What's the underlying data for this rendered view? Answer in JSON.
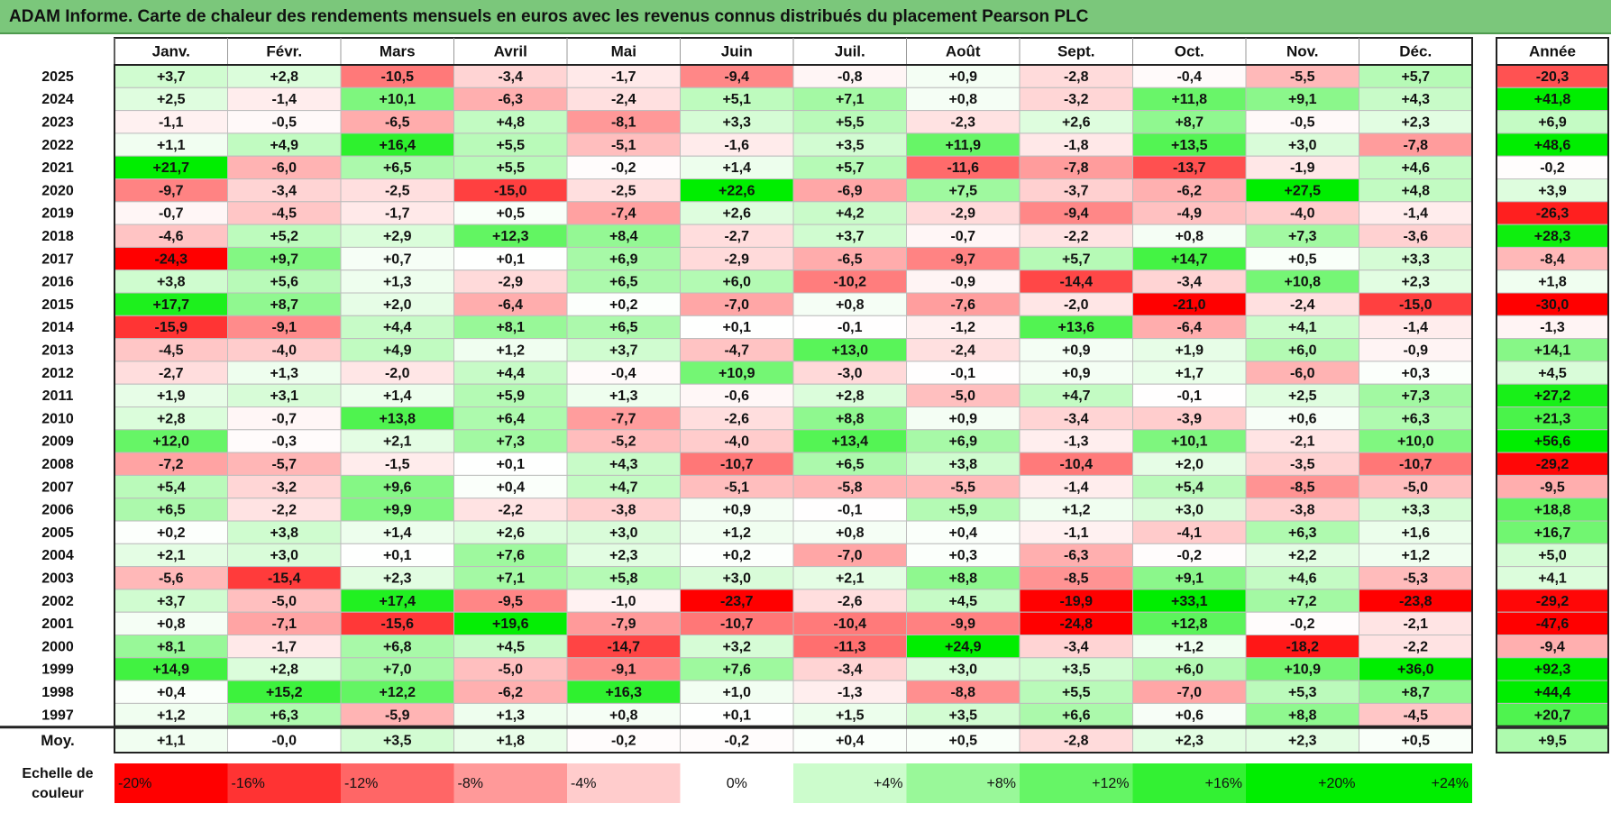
{
  "title": "ADAM Informe. Carte de chaleur des rendements mensuels en euros avec les revenus connus distribués du placement Pearson PLC",
  "chart_data": {
    "type": "heatmap",
    "title": "ADAM Informe. Carte de chaleur des rendements mensuels en euros avec les revenus connus distribués du placement Pearson PLC",
    "columns": [
      "Janv.",
      "Févr.",
      "Mars",
      "Avril",
      "Mai",
      "Juin",
      "Juil.",
      "Août",
      "Sept.",
      "Oct.",
      "Nov.",
      "Déc."
    ],
    "year_header": "Année",
    "rows": [
      {
        "year": "2025",
        "values": [
          "+3,7",
          "+2,8",
          "-10,5",
          "-3,4",
          "-1,7",
          "-9,4",
          "-0,8",
          "+0,9",
          "-2,8",
          "-0,4",
          "-5,5",
          "+5,7"
        ],
        "annual": "-20,3"
      },
      {
        "year": "2024",
        "values": [
          "+2,5",
          "-1,4",
          "+10,1",
          "-6,3",
          "-2,4",
          "+5,1",
          "+7,1",
          "+0,8",
          "-3,2",
          "+11,8",
          "+9,1",
          "+4,3"
        ],
        "annual": "+41,8"
      },
      {
        "year": "2023",
        "values": [
          "-1,1",
          "-0,5",
          "-6,5",
          "+4,8",
          "-8,1",
          "+3,3",
          "+5,5",
          "-2,3",
          "+2,6",
          "+8,7",
          "-0,5",
          "+2,3"
        ],
        "annual": "+6,9"
      },
      {
        "year": "2022",
        "values": [
          "+1,1",
          "+4,9",
          "+16,4",
          "+5,5",
          "-5,1",
          "-1,6",
          "+3,5",
          "+11,9",
          "-1,8",
          "+13,5",
          "+3,0",
          "-7,8"
        ],
        "annual": "+48,6"
      },
      {
        "year": "2021",
        "values": [
          "+21,7",
          "-6,0",
          "+6,5",
          "+5,5",
          "-0,2",
          "+1,4",
          "+5,7",
          "-11,6",
          "-7,8",
          "-13,7",
          "-1,9",
          "+4,6"
        ],
        "annual": "-0,2"
      },
      {
        "year": "2020",
        "values": [
          "-9,7",
          "-3,4",
          "-2,5",
          "-15,0",
          "-2,5",
          "+22,6",
          "-6,9",
          "+7,5",
          "-3,7",
          "-6,2",
          "+27,5",
          "+4,8"
        ],
        "annual": "+3,9"
      },
      {
        "year": "2019",
        "values": [
          "-0,7",
          "-4,5",
          "-1,7",
          "+0,5",
          "-7,4",
          "+2,6",
          "+4,2",
          "-2,9",
          "-9,4",
          "-4,9",
          "-4,0",
          "-1,4"
        ],
        "annual": "-26,3"
      },
      {
        "year": "2018",
        "values": [
          "-4,6",
          "+5,2",
          "+2,9",
          "+12,3",
          "+8,4",
          "-2,7",
          "+3,7",
          "-0,7",
          "-2,2",
          "+0,8",
          "+7,3",
          "-3,6"
        ],
        "annual": "+28,3"
      },
      {
        "year": "2017",
        "values": [
          "-24,3",
          "+9,7",
          "+0,7",
          "+0,1",
          "+6,9",
          "-2,9",
          "-6,5",
          "-9,7",
          "+5,7",
          "+14,7",
          "+0,5",
          "+3,3"
        ],
        "annual": "-8,4"
      },
      {
        "year": "2016",
        "values": [
          "+3,8",
          "+5,6",
          "+1,3",
          "-2,9",
          "+6,5",
          "+6,0",
          "-10,2",
          "-0,9",
          "-14,4",
          "-3,4",
          "+10,8",
          "+2,3"
        ],
        "annual": "+1,8"
      },
      {
        "year": "2015",
        "values": [
          "+17,7",
          "+8,7",
          "+2,0",
          "-6,4",
          "+0,2",
          "-7,0",
          "+0,8",
          "-7,6",
          "-2,0",
          "-21,0",
          "-2,4",
          "-15,0"
        ],
        "annual": "-30,0"
      },
      {
        "year": "2014",
        "values": [
          "-15,9",
          "-9,1",
          "+4,4",
          "+8,1",
          "+6,5",
          "+0,1",
          "-0,1",
          "-1,2",
          "+13,6",
          "-6,4",
          "+4,1",
          "-1,4"
        ],
        "annual": "-1,3"
      },
      {
        "year": "2013",
        "values": [
          "-4,5",
          "-4,0",
          "+4,9",
          "+1,2",
          "+3,7",
          "-4,7",
          "+13,0",
          "-2,4",
          "+0,9",
          "+1,9",
          "+6,0",
          "-0,9"
        ],
        "annual": "+14,1"
      },
      {
        "year": "2012",
        "values": [
          "-2,7",
          "+1,3",
          "-2,0",
          "+4,4",
          "-0,4",
          "+10,9",
          "-3,0",
          "-0,1",
          "+0,9",
          "+1,7",
          "-6,0",
          "+0,3"
        ],
        "annual": "+4,5"
      },
      {
        "year": "2011",
        "values": [
          "+1,9",
          "+3,1",
          "+1,4",
          "+5,9",
          "+1,3",
          "-0,6",
          "+2,8",
          "-5,0",
          "+4,7",
          "-0,1",
          "+2,5",
          "+7,3"
        ],
        "annual": "+27,2"
      },
      {
        "year": "2010",
        "values": [
          "+2,8",
          "-0,7",
          "+13,8",
          "+6,4",
          "-7,7",
          "-2,6",
          "+8,8",
          "+0,9",
          "-3,4",
          "-3,9",
          "+0,6",
          "+6,3"
        ],
        "annual": "+21,3"
      },
      {
        "year": "2009",
        "values": [
          "+12,0",
          "-0,3",
          "+2,1",
          "+7,3",
          "-5,2",
          "-4,0",
          "+13,4",
          "+6,9",
          "-1,3",
          "+10,1",
          "-2,1",
          "+10,0"
        ],
        "annual": "+56,6"
      },
      {
        "year": "2008",
        "values": [
          "-7,2",
          "-5,7",
          "-1,5",
          "+0,1",
          "+4,3",
          "-10,7",
          "+6,5",
          "+3,8",
          "-10,4",
          "+2,0",
          "-3,5",
          "-10,7"
        ],
        "annual": "-29,2"
      },
      {
        "year": "2007",
        "values": [
          "+5,4",
          "-3,2",
          "+9,6",
          "+0,4",
          "+4,7",
          "-5,1",
          "-5,8",
          "-5,5",
          "-1,4",
          "+5,4",
          "-8,5",
          "-5,0"
        ],
        "annual": "-9,5"
      },
      {
        "year": "2006",
        "values": [
          "+6,5",
          "-2,2",
          "+9,9",
          "-2,2",
          "-3,8",
          "+0,9",
          "-0,1",
          "+5,9",
          "+1,2",
          "+3,0",
          "-3,8",
          "+3,3"
        ],
        "annual": "+18,8"
      },
      {
        "year": "2005",
        "values": [
          "+0,2",
          "+3,8",
          "+1,4",
          "+2,6",
          "+3,0",
          "+1,2",
          "+0,8",
          "+0,4",
          "-1,1",
          "-4,1",
          "+6,3",
          "+1,6"
        ],
        "annual": "+16,7"
      },
      {
        "year": "2004",
        "values": [
          "+2,1",
          "+3,0",
          "+0,1",
          "+7,6",
          "+2,3",
          "+0,2",
          "-7,0",
          "+0,3",
          "-6,3",
          "-0,2",
          "+2,2",
          "+1,2"
        ],
        "annual": "+5,0"
      },
      {
        "year": "2003",
        "values": [
          "-5,6",
          "-15,4",
          "+2,3",
          "+7,1",
          "+5,8",
          "+3,0",
          "+2,1",
          "+8,8",
          "-8,5",
          "+9,1",
          "+4,6",
          "-5,3"
        ],
        "annual": "+4,1"
      },
      {
        "year": "2002",
        "values": [
          "+3,7",
          "-5,0",
          "+17,4",
          "-9,5",
          "-1,0",
          "-23,7",
          "-2,6",
          "+4,5",
          "-19,9",
          "+33,1",
          "+7,2",
          "-23,8"
        ],
        "annual": "-29,2"
      },
      {
        "year": "2001",
        "values": [
          "+0,8",
          "-7,1",
          "-15,6",
          "+19,6",
          "-7,9",
          "-10,7",
          "-10,4",
          "-9,9",
          "-24,8",
          "+12,8",
          "-0,2",
          "-2,1"
        ],
        "annual": "-47,6"
      },
      {
        "year": "2000",
        "values": [
          "+8,1",
          "-1,7",
          "+6,8",
          "+4,5",
          "-14,7",
          "+3,2",
          "-11,3",
          "+24,9",
          "-3,4",
          "+1,2",
          "-18,2",
          "-2,2"
        ],
        "annual": "-9,4"
      },
      {
        "year": "1999",
        "values": [
          "+14,9",
          "+2,8",
          "+7,0",
          "-5,0",
          "-9,1",
          "+7,6",
          "-3,4",
          "+3,0",
          "+3,5",
          "+6,0",
          "+10,9",
          "+36,0"
        ],
        "annual": "+92,3"
      },
      {
        "year": "1998",
        "values": [
          "+0,4",
          "+15,2",
          "+12,2",
          "-6,2",
          "+16,3",
          "+1,0",
          "-1,3",
          "-8,8",
          "+5,5",
          "-7,0",
          "+5,3",
          "+8,7"
        ],
        "annual": "+44,4"
      },
      {
        "year": "1997",
        "values": [
          "+1,2",
          "+6,3",
          "-5,9",
          "+1,3",
          "+0,8",
          "+0,1",
          "+1,5",
          "+3,5",
          "+6,6",
          "+0,6",
          "+8,8",
          "-4,5"
        ],
        "annual": "+20,7"
      }
    ],
    "average": {
      "label": "Moy.",
      "values": [
        "+1,1",
        "-0,0",
        "+3,5",
        "+1,8",
        "-0,2",
        "-0,2",
        "+0,4",
        "+0,5",
        "-2,8",
        "+2,3",
        "+2,3",
        "+0,5"
      ],
      "annual": "+9,5"
    },
    "scale": {
      "label_line1": "Echelle de",
      "label_line2": "couleur",
      "steps": [
        "-20%",
        "-16%",
        "-12%",
        "-8%",
        "-4%",
        "0%",
        "+4%",
        "+8%",
        "+12%",
        "+16%",
        "+20%",
        "+24%"
      ]
    },
    "colors": {
      "neg_max": "#ff0000",
      "neutral": "#ffffff",
      "pos_max": "#00ee00",
      "title_bg": "#7bc77b"
    }
  }
}
